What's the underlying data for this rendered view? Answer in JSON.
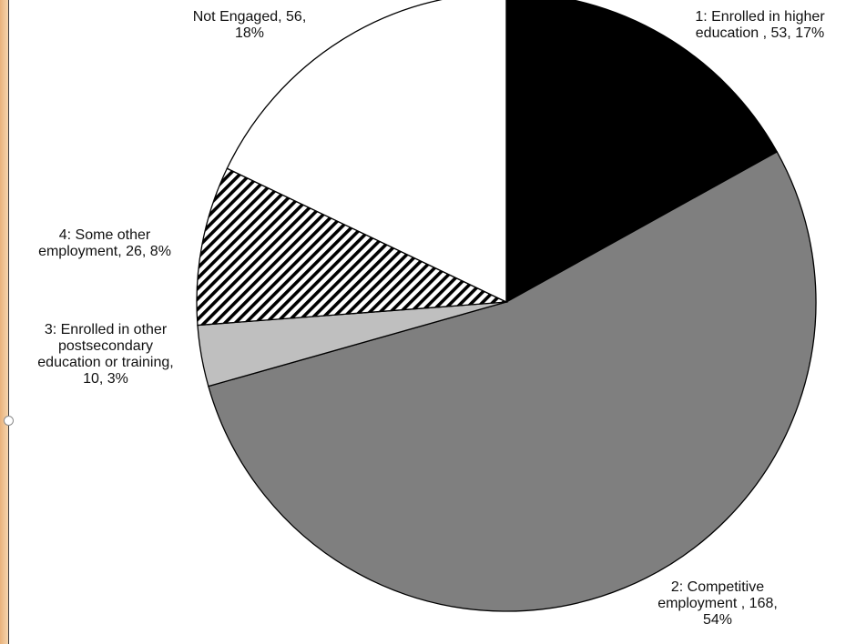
{
  "chart_data": {
    "type": "pie",
    "title": "",
    "slices": [
      {
        "category": "1: Enrolled in higher education",
        "value": 53,
        "percent": "17%",
        "label": "1: Enrolled in higher\neducation , 53, 17%",
        "fill": "#000000",
        "pattern": "solid"
      },
      {
        "category": "2: Competitive employment",
        "value": 168,
        "percent": "54%",
        "label": "2: Competitive\nemployment , 168,\n54%",
        "fill": "#7f7f7f",
        "pattern": "solid"
      },
      {
        "category": "3: Enrolled in other postsecondary education or training",
        "value": 10,
        "percent": "3%",
        "label": "3: Enrolled in other\npostsecondary\neducation or training,\n10, 3%",
        "fill": "#bfbfbf",
        "pattern": "solid"
      },
      {
        "category": "4: Some other employment",
        "value": 26,
        "percent": "8%",
        "label": "4: Some other\nemployment, 26, 8%",
        "fill": "#000000",
        "pattern": "diagonal-hatch"
      },
      {
        "category": "Not Engaged",
        "value": 56,
        "percent": "18%",
        "label": "Not Engaged, 56,\n18%",
        "fill": "#ffffff",
        "pattern": "solid"
      }
    ],
    "legend": "none",
    "start_angle": "12 o'clock",
    "direction": "clockwise"
  },
  "colors": {
    "outline": "#000000",
    "left_strip": "#f0c291"
  }
}
